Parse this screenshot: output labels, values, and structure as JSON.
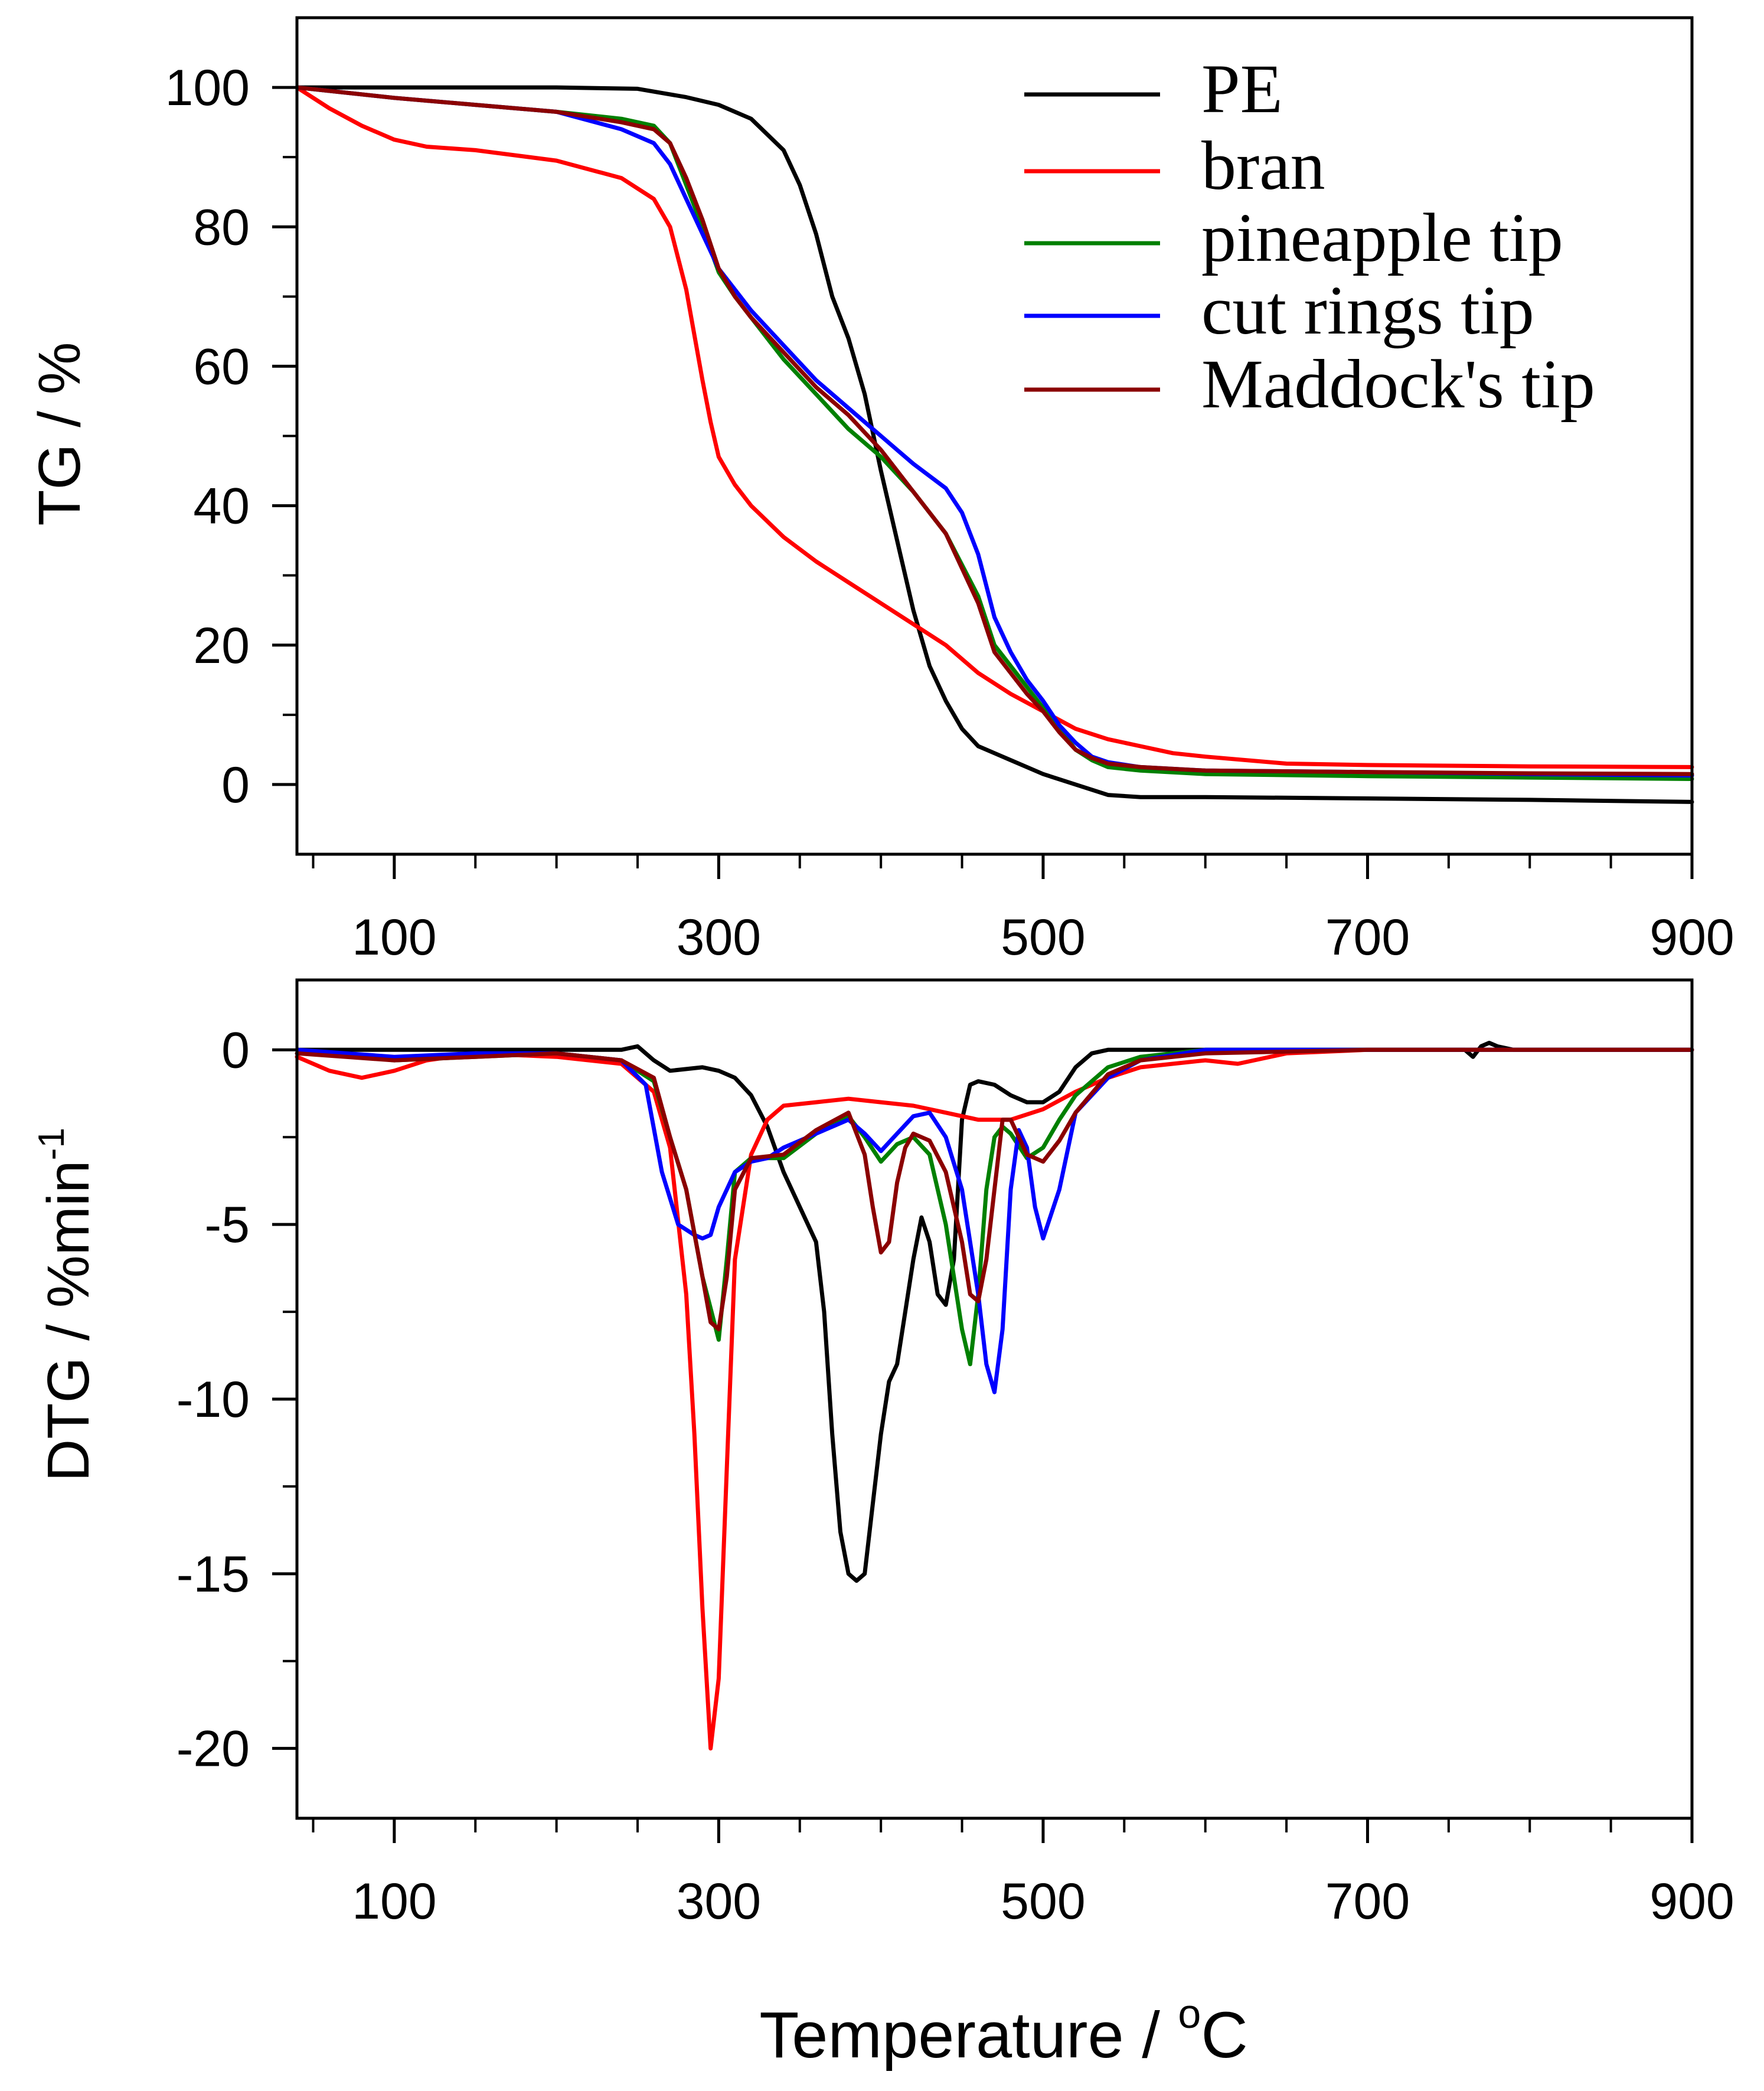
{
  "chart_data": [
    {
      "type": "line",
      "panel": "top",
      "ylabel": "TG / %",
      "xlim": [
        40,
        900
      ],
      "ylim": [
        -10,
        110
      ],
      "xticks": [
        100,
        300,
        500,
        700,
        900
      ],
      "yticks": [
        0,
        20,
        40,
        60,
        80,
        100
      ],
      "legend": {
        "placement": "top-right",
        "entries": [
          "PE",
          "bran",
          "pineapple tip",
          "cut rings tip",
          "Maddock's tip"
        ]
      },
      "series": [
        {
          "name": "PE",
          "color": "#000000",
          "x": [
            40,
            100,
            200,
            250,
            280,
            300,
            320,
            340,
            350,
            360,
            370,
            380,
            390,
            400,
            410,
            420,
            430,
            440,
            450,
            460,
            470,
            480,
            500,
            520,
            540,
            560,
            600,
            700,
            800,
            900
          ],
          "y": [
            100,
            100,
            100,
            99.8,
            98.6,
            97.5,
            95.5,
            91,
            86,
            79,
            70,
            64,
            56,
            45,
            35,
            25,
            17,
            12,
            8,
            5.5,
            4.5,
            3.5,
            1.5,
            0,
            -1.5,
            -1.8,
            -1.8,
            -2,
            -2.2,
            -2.5
          ]
        },
        {
          "name": "bran",
          "color": "#ff0000",
          "x": [
            40,
            60,
            80,
            100,
            120,
            150,
            200,
            240,
            260,
            270,
            280,
            290,
            295,
            300,
            310,
            320,
            340,
            360,
            380,
            400,
            420,
            440,
            460,
            480,
            500,
            520,
            540,
            560,
            580,
            600,
            650,
            700,
            800,
            900
          ],
          "y": [
            100,
            97,
            94.5,
            92.5,
            91.5,
            91,
            89.5,
            87,
            84,
            80,
            71,
            58,
            52,
            47,
            43,
            40,
            35.5,
            32,
            29,
            26,
            23,
            20,
            16,
            13,
            10.5,
            8,
            6.5,
            5.5,
            4.5,
            4,
            3,
            2.8,
            2.6,
            2.5
          ]
        },
        {
          "name": "pineapple tip",
          "color": "#008000",
          "x": [
            40,
            100,
            150,
            200,
            240,
            260,
            270,
            280,
            290,
            300,
            310,
            320,
            340,
            360,
            380,
            400,
            420,
            440,
            460,
            470,
            480,
            490,
            500,
            510,
            520,
            530,
            540,
            560,
            600,
            700,
            800,
            900
          ],
          "y": [
            100,
            98.5,
            97.5,
            96.5,
            95.5,
            94.5,
            92,
            86,
            80,
            73.5,
            70,
            67,
            61,
            56,
            51,
            47,
            42,
            36,
            27,
            20,
            17,
            14,
            11,
            8,
            5,
            3.5,
            2.5,
            2,
            1.5,
            1.2,
            1,
            0.8
          ]
        },
        {
          "name": "cut rings tip",
          "color": "#0000ff",
          "x": [
            40,
            100,
            150,
            200,
            240,
            260,
            270,
            280,
            290,
            300,
            310,
            320,
            340,
            360,
            380,
            400,
            420,
            440,
            450,
            460,
            470,
            480,
            490,
            500,
            510,
            520,
            530,
            540,
            560,
            600,
            700,
            800,
            900
          ],
          "y": [
            100,
            98.5,
            97.5,
            96.5,
            94,
            92,
            89,
            84,
            79,
            74,
            71,
            68,
            63,
            58,
            54,
            50,
            46,
            42.5,
            39,
            33,
            24,
            19,
            15,
            12,
            8.5,
            6,
            4,
            3.2,
            2.5,
            2,
            1.8,
            1.5,
            1.3
          ]
        },
        {
          "name": "Maddock's tip",
          "color": "#8b0000",
          "x": [
            40,
            100,
            150,
            200,
            240,
            260,
            270,
            280,
            290,
            300,
            310,
            320,
            340,
            360,
            380,
            400,
            420,
            440,
            460,
            470,
            480,
            490,
            500,
            510,
            520,
            530,
            540,
            560,
            600,
            700,
            800,
            900
          ],
          "y": [
            100,
            98.5,
            97.5,
            96.5,
            95,
            94,
            92,
            87,
            81,
            74,
            70,
            67,
            62,
            57,
            53,
            48,
            42,
            36,
            26,
            19,
            16,
            13,
            10.5,
            7.5,
            5,
            3.8,
            3,
            2.5,
            2,
            1.8,
            1.6,
            1.5
          ]
        }
      ]
    },
    {
      "type": "line",
      "panel": "bottom",
      "ylabel": "DTG / %min",
      "ylabel_sup": "-1",
      "xlabel": "Temperature / ",
      "xlabel_sup": "o",
      "xlabel_unit": "C",
      "xlim": [
        40,
        900
      ],
      "ylim": [
        -22,
        2
      ],
      "xticks": [
        100,
        300,
        500,
        700,
        900
      ],
      "yticks": [
        0,
        -5,
        -10,
        -15,
        -20
      ],
      "series": [
        {
          "name": "PE",
          "color": "#000000",
          "x": [
            40,
            200,
            240,
            250,
            260,
            270,
            290,
            300,
            310,
            320,
            330,
            340,
            350,
            360,
            365,
            370,
            375,
            380,
            385,
            390,
            395,
            400,
            405,
            410,
            415,
            420,
            425,
            430,
            435,
            440,
            445,
            450,
            455,
            460,
            470,
            480,
            490,
            500,
            510,
            520,
            530,
            540,
            600,
            760,
            765,
            770,
            775,
            780,
            790,
            900
          ],
          "y": [
            0,
            0,
            0,
            0.1,
            -0.3,
            -0.6,
            -0.5,
            -0.6,
            -0.8,
            -1.3,
            -2.2,
            -3.5,
            -4.5,
            -5.5,
            -7.5,
            -11,
            -13.8,
            -15,
            -15.2,
            -15,
            -13,
            -11,
            -9.5,
            -9,
            -7.5,
            -6,
            -4.8,
            -5.5,
            -7,
            -7.3,
            -6,
            -2,
            -1,
            -0.9,
            -1,
            -1.3,
            -1.5,
            -1.5,
            -1.2,
            -0.5,
            -0.1,
            0,
            0,
            0,
            -0.2,
            0.1,
            0.2,
            0.1,
            0,
            0
          ]
        },
        {
          "name": "bran",
          "color": "#ff0000",
          "x": [
            40,
            60,
            80,
            100,
            120,
            150,
            200,
            240,
            260,
            270,
            280,
            285,
            290,
            295,
            300,
            305,
            310,
            320,
            330,
            340,
            360,
            380,
            400,
            420,
            440,
            460,
            480,
            500,
            520,
            540,
            560,
            600,
            620,
            650,
            700,
            900
          ],
          "y": [
            -0.2,
            -0.6,
            -0.8,
            -0.6,
            -0.3,
            -0.1,
            -0.2,
            -0.4,
            -1.2,
            -2.8,
            -7,
            -11,
            -16,
            -20,
            -18,
            -12,
            -6,
            -3,
            -2,
            -1.6,
            -1.5,
            -1.4,
            -1.5,
            -1.6,
            -1.8,
            -2,
            -2,
            -1.7,
            -1.2,
            -0.8,
            -0.5,
            -0.3,
            -0.4,
            -0.1,
            0,
            0
          ]
        },
        {
          "name": "pineapple tip",
          "color": "#008000",
          "x": [
            40,
            100,
            150,
            200,
            240,
            260,
            270,
            280,
            290,
            300,
            305,
            310,
            320,
            340,
            360,
            380,
            390,
            400,
            410,
            420,
            430,
            440,
            450,
            455,
            460,
            465,
            470,
            475,
            480,
            490,
            500,
            510,
            520,
            540,
            560,
            600,
            700,
            900
          ],
          "y": [
            0,
            -0.3,
            -0.2,
            -0.1,
            -0.3,
            -0.9,
            -2.5,
            -4,
            -6.5,
            -8.3,
            -6,
            -3.5,
            -3.1,
            -3.1,
            -2.4,
            -1.9,
            -2.5,
            -3.2,
            -2.7,
            -2.5,
            -3,
            -5,
            -8,
            -9,
            -7,
            -4,
            -2.5,
            -2.2,
            -2.4,
            -3.1,
            -2.8,
            -2,
            -1.3,
            -0.5,
            -0.2,
            0,
            0,
            0
          ]
        },
        {
          "name": "cut rings tip",
          "color": "#0000ff",
          "x": [
            40,
            100,
            150,
            200,
            240,
            255,
            265,
            275,
            285,
            290,
            295,
            300,
            310,
            320,
            330,
            340,
            360,
            380,
            390,
            400,
            410,
            420,
            430,
            440,
            450,
            460,
            465,
            470,
            475,
            480,
            485,
            490,
            495,
            500,
            510,
            520,
            540,
            560,
            600,
            700,
            900
          ],
          "y": [
            0,
            -0.2,
            -0.1,
            -0.1,
            -0.3,
            -1,
            -3.5,
            -5,
            -5.3,
            -5.4,
            -5.3,
            -4.5,
            -3.5,
            -3.2,
            -3.1,
            -2.8,
            -2.4,
            -2,
            -2.4,
            -2.9,
            -2.4,
            -1.9,
            -1.8,
            -2.5,
            -4,
            -7,
            -9,
            -9.8,
            -8,
            -4,
            -2.3,
            -2.8,
            -4.5,
            -5.4,
            -4,
            -1.8,
            -0.8,
            -0.3,
            0,
            0,
            0
          ]
        },
        {
          "name": "Maddock's tip",
          "color": "#8b0000",
          "x": [
            40,
            100,
            150,
            200,
            240,
            260,
            270,
            280,
            290,
            295,
            300,
            305,
            310,
            320,
            340,
            360,
            380,
            390,
            395,
            400,
            405,
            410,
            415,
            420,
            430,
            440,
            450,
            455,
            460,
            465,
            470,
            475,
            480,
            490,
            500,
            510,
            520,
            540,
            560,
            600,
            700,
            900
          ],
          "y": [
            -0.1,
            -0.3,
            -0.2,
            -0.1,
            -0.3,
            -0.8,
            -2.5,
            -4,
            -6.5,
            -7.8,
            -8,
            -6.5,
            -4,
            -3.1,
            -3,
            -2.3,
            -1.8,
            -3,
            -4.5,
            -5.8,
            -5.5,
            -3.8,
            -2.8,
            -2.4,
            -2.6,
            -3.5,
            -5.5,
            -7,
            -7.2,
            -6,
            -4,
            -2,
            -2,
            -3,
            -3.2,
            -2.6,
            -1.8,
            -0.7,
            -0.3,
            -0.1,
            0,
            0
          ]
        }
      ]
    }
  ]
}
